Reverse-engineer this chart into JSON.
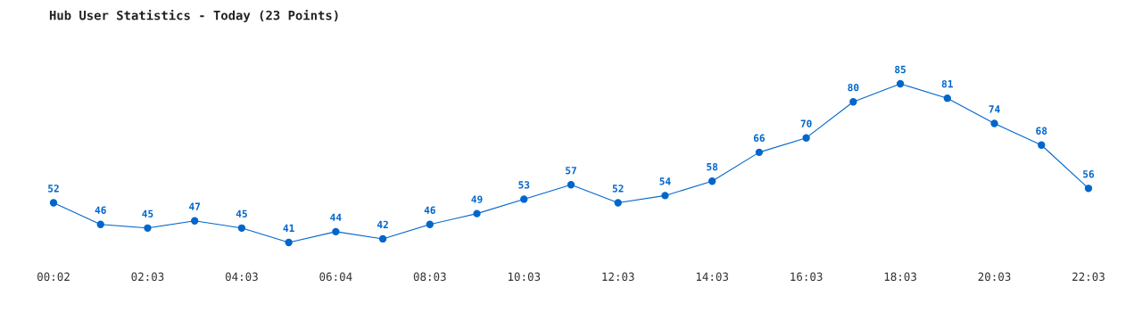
{
  "chart_data": {
    "type": "line",
    "title": "Hub User Statistics - Today (23 Points)",
    "categories": [
      "00:02",
      null,
      "02:03",
      null,
      "04:03",
      null,
      "06:04",
      null,
      "08:03",
      null,
      "10:03",
      null,
      "12:03",
      null,
      "14:03",
      null,
      "16:03",
      null,
      "18:03",
      null,
      "20:03",
      null,
      "22:03"
    ],
    "series": [
      {
        "color": "#0066cc",
        "values": [
          52,
          46,
          45,
          47,
          45,
          41,
          44,
          42,
          46,
          49,
          53,
          57,
          52,
          54,
          58,
          66,
          70,
          80,
          85,
          81,
          74,
          68,
          56
        ]
      }
    ],
    "data_labels": true,
    "marker": "circle",
    "grid": false
  }
}
